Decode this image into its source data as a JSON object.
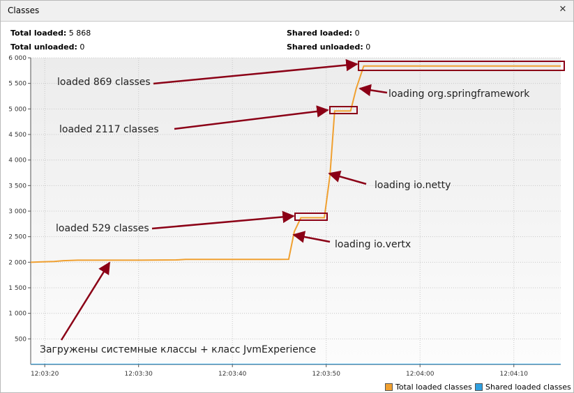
{
  "window": {
    "title": "Classes",
    "close_icon": "close-icon"
  },
  "stats": {
    "total_loaded_label": "Total loaded:",
    "total_loaded_value": "5 868",
    "total_unloaded_label": "Total unloaded:",
    "total_unloaded_value": "0",
    "shared_loaded_label": "Shared loaded:",
    "shared_loaded_value": "0",
    "shared_unloaded_label": "Shared unloaded:",
    "shared_unloaded_value": "0"
  },
  "legend": {
    "total_label": "Total loaded classes",
    "shared_label": "Shared loaded classes"
  },
  "colors": {
    "total": "#f0a030",
    "shared": "#2fa0e0",
    "annotation": "#8b0016"
  },
  "chart_data": {
    "type": "line",
    "y_ticks": [
      "500",
      "1 000",
      "1 500",
      "2 000",
      "2 500",
      "3 000",
      "3 500",
      "4 000",
      "4 500",
      "5 000",
      "5 500",
      "6 000"
    ],
    "y_tick_values": [
      500,
      1000,
      1500,
      2000,
      2500,
      3000,
      3500,
      4000,
      4500,
      5000,
      5500,
      6000
    ],
    "x_ticks": [
      "12:03:20",
      "12:03:30",
      "12:03:40",
      "12:03:50",
      "12:04:00",
      "12:04:10"
    ],
    "x_tick_values": [
      20,
      30,
      40,
      50,
      60,
      70
    ],
    "ylim": [
      0,
      6000
    ],
    "series": [
      {
        "name": "Total loaded classes",
        "x": [
          18.5,
          20.0,
          21.0,
          22.0,
          23.5,
          30.0,
          34.0,
          35.0,
          45.0,
          46.0,
          46.6,
          47.3,
          49.8,
          50.4,
          50.9,
          52.6,
          53.2,
          54.0,
          75.0
        ],
        "y": [
          2000,
          2010,
          2015,
          2030,
          2040,
          2040,
          2045,
          2055,
          2055,
          2058,
          2600,
          2870,
          2870,
          3700,
          4960,
          4960,
          5400,
          5840,
          5840
        ]
      },
      {
        "name": "Shared loaded classes",
        "x": [
          18.5,
          75.0
        ],
        "y": [
          0,
          0
        ]
      }
    ],
    "annotations": [
      "loaded 869 classes",
      "loading org.springframework",
      "loaded 2117 classes",
      "loading io.netty",
      "loaded 529 classes",
      "loading io.vertx",
      "Загружены системные классы + класс JvmExperience"
    ]
  }
}
